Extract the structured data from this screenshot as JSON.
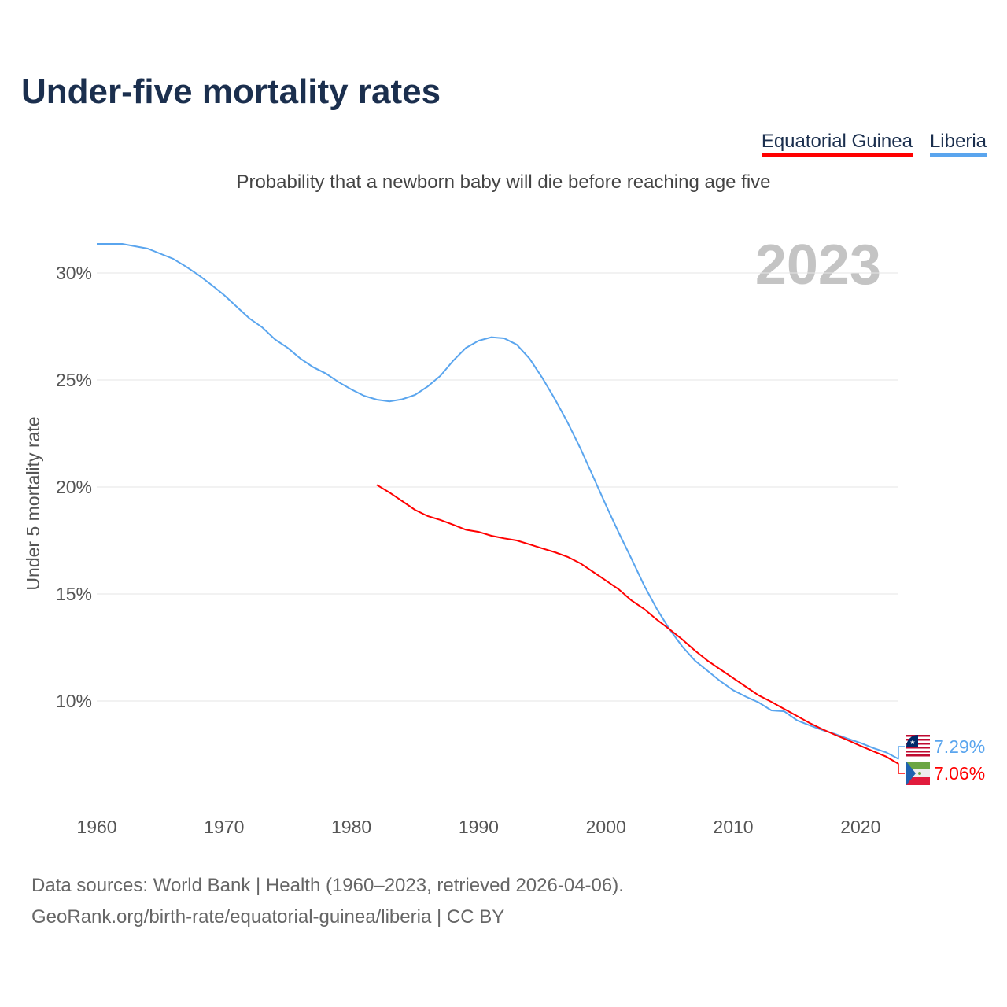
{
  "title": "Under-five mortality rates",
  "subtitle": "Probability that a newborn baby will die before reaching age five",
  "source_line1": "Data sources: World Bank | Health (1960–2023, retrieved 2026-04-06).",
  "source_line2": "GeoRank.org/birth-rate/equatorial-guinea/liberia | CC BY",
  "chart_data": {
    "type": "line",
    "title": "Under-five mortality rates",
    "ylabel": "Under 5 mortality rate",
    "xlabel": "",
    "year_label": "2023",
    "xlim": [
      1960,
      2023
    ],
    "ylim": [
      5.5,
      32
    ],
    "xticks": [
      1960,
      1970,
      1980,
      1990,
      2000,
      2010,
      2020
    ],
    "yticks": [
      {
        "v": 10,
        "label": "10%"
      },
      {
        "v": 15,
        "label": "15%"
      },
      {
        "v": 20,
        "label": "20%"
      },
      {
        "v": 25,
        "label": "25%"
      },
      {
        "v": 30,
        "label": "30%"
      }
    ],
    "legend_position": "top-right",
    "series": [
      {
        "name": "Equatorial Guinea",
        "color": "#ff0000",
        "end_label": "7.06%",
        "start_year": 1982,
        "values": [
          20.1,
          19.74,
          19.34,
          18.93,
          18.64,
          18.46,
          18.24,
          18.0,
          17.9,
          17.72,
          17.6,
          17.5,
          17.32,
          17.13,
          16.95,
          16.73,
          16.43,
          16.03,
          15.63,
          15.22,
          14.7,
          14.3,
          13.8,
          13.35,
          12.87,
          12.35,
          11.88,
          11.47,
          11.07,
          10.66,
          10.26,
          9.96,
          9.63,
          9.3,
          8.97,
          8.68,
          8.42,
          8.17,
          7.9,
          7.65,
          7.4,
          7.06
        ]
      },
      {
        "name": "Liberia",
        "color": "#5aa5ee",
        "end_label": "7.29%",
        "start_year": 1960,
        "values": [
          31.36,
          31.36,
          31.36,
          31.25,
          31.14,
          30.9,
          30.66,
          30.3,
          29.9,
          29.45,
          28.97,
          28.42,
          27.87,
          27.46,
          26.9,
          26.5,
          26.0,
          25.6,
          25.3,
          24.9,
          24.56,
          24.26,
          24.08,
          24.0,
          24.1,
          24.3,
          24.7,
          25.2,
          25.9,
          26.5,
          26.84,
          27.0,
          26.95,
          26.65,
          26.0,
          25.1,
          24.1,
          23.0,
          21.8,
          20.48,
          19.15,
          17.87,
          16.65,
          15.4,
          14.3,
          13.35,
          12.54,
          11.88,
          11.4,
          10.92,
          10.5,
          10.2,
          9.93,
          9.56,
          9.52,
          9.1,
          8.86,
          8.64,
          8.46,
          8.24,
          8.04,
          7.8,
          7.6,
          7.29
        ]
      }
    ]
  }
}
